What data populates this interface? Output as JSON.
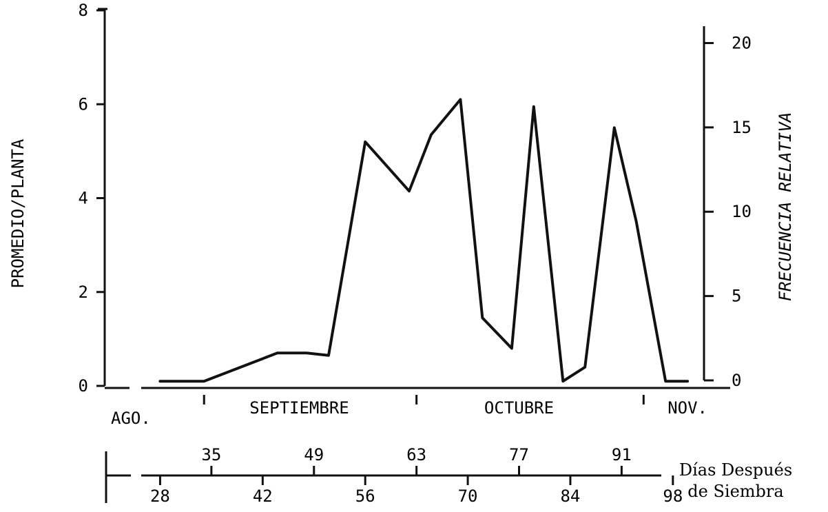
{
  "chart_data": {
    "type": "line",
    "title": "",
    "ylabel_left": "PROMEDIO/PLANTA",
    "ylabel_right": "FRECUENCIA RELATIVA",
    "xlabel": "Días Después de Siembra",
    "xlabel_line1": "Días Después",
    "xlabel_line2": "de Siembra",
    "ylim_left": [
      0,
      8
    ],
    "ylim_right": [
      0,
      21
    ],
    "yticks_left": [
      0,
      2,
      4,
      6,
      8
    ],
    "yticks_right": [
      0,
      5,
      10,
      15,
      20
    ],
    "xlim": [
      21,
      103
    ],
    "xticks_lower": [
      28,
      42,
      56,
      70,
      84,
      98
    ],
    "xticks_upper": [
      35,
      49,
      63,
      77,
      91
    ],
    "months": [
      {
        "label": "AGO.",
        "x": 24
      },
      {
        "label": "SEPTIEMBRE",
        "x": 47
      },
      {
        "label": "OCTUBRE",
        "x": 77
      },
      {
        "label": "NOV.",
        "x": 100
      }
    ],
    "month_boundaries": [
      34,
      63,
      94
    ],
    "series": [
      {
        "points": [
          [
            28,
            0.1
          ],
          [
            34,
            0.1
          ],
          [
            44,
            0.7
          ],
          [
            48,
            0.7
          ],
          [
            51,
            0.65
          ],
          [
            56,
            5.2
          ],
          [
            62,
            4.15
          ],
          [
            65,
            5.35
          ],
          [
            69,
            6.1
          ],
          [
            72,
            1.45
          ],
          [
            76,
            0.8
          ],
          [
            79,
            5.95
          ],
          [
            83,
            0.1
          ],
          [
            86,
            0.4
          ],
          [
            90,
            5.5
          ],
          [
            93,
            3.5
          ],
          [
            97,
            0.1
          ],
          [
            100,
            0.1
          ]
        ]
      }
    ]
  }
}
